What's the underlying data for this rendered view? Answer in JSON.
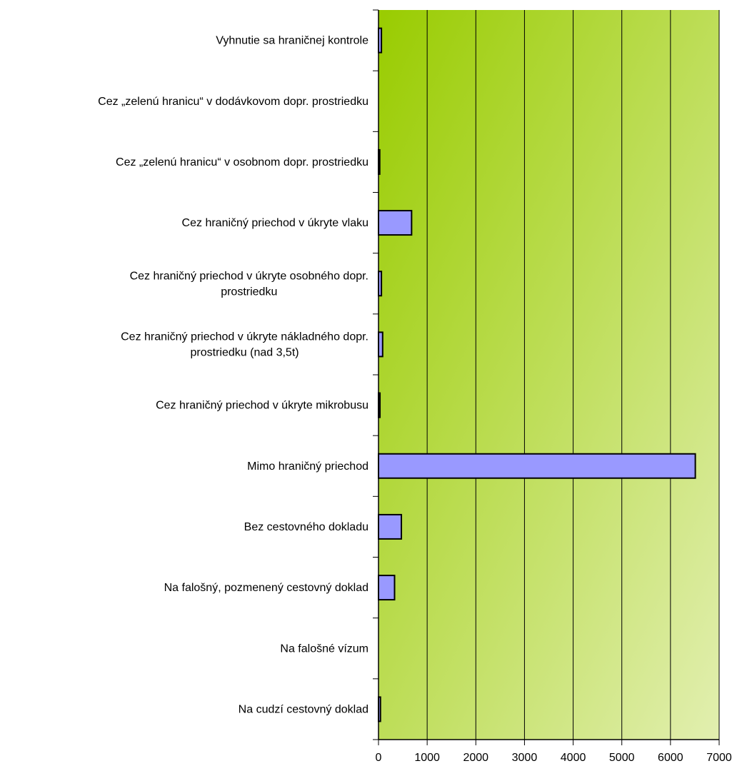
{
  "chart_data": {
    "type": "bar",
    "orientation": "horizontal",
    "title": "",
    "xlabel": "",
    "ylabel": "",
    "xlim": [
      0,
      7000
    ],
    "xticks": [
      0,
      1000,
      2000,
      3000,
      4000,
      5000,
      6000,
      7000
    ],
    "grid": "vertical major gridlines",
    "legend": "none",
    "categories": [
      [
        "Vyhnutie sa hraničnej kontrole"
      ],
      [
        "Cez „zelenú hranicu“ v dodávkovom dopr. prostriedku"
      ],
      [
        "Cez „zelenú hranicu“ v osobnom dopr. prostriedku"
      ],
      [
        "Cez hraničný priechod v úkryte vlaku"
      ],
      [
        "Cez hraničný priechod v úkryte osobného dopr.",
        "prostriedku"
      ],
      [
        "Cez hraničný priechod v úkryte nákladného dopr.",
        "prostriedku (nad 3,5t)"
      ],
      [
        "Cez hraničný priechod v úkryte mikrobusu"
      ],
      [
        "Mimo hraničný priechod"
      ],
      [
        "Bez cestovného dokladu"
      ],
      [
        "Na falošný, pozmenený cestovný doklad"
      ],
      [
        "Na falošné vízum"
      ],
      [
        "Na cudzí cestovný doklad"
      ]
    ],
    "values": [
      60,
      0,
      25,
      680,
      60,
      85,
      30,
      6510,
      470,
      330,
      0,
      40
    ],
    "colors": {
      "bar_fill": "#9999FF",
      "bar_stroke": "#000000",
      "plot_gradient_start": "#99CC00",
      "plot_gradient_end": "#E2EFB0",
      "gridline": "#000000"
    }
  }
}
